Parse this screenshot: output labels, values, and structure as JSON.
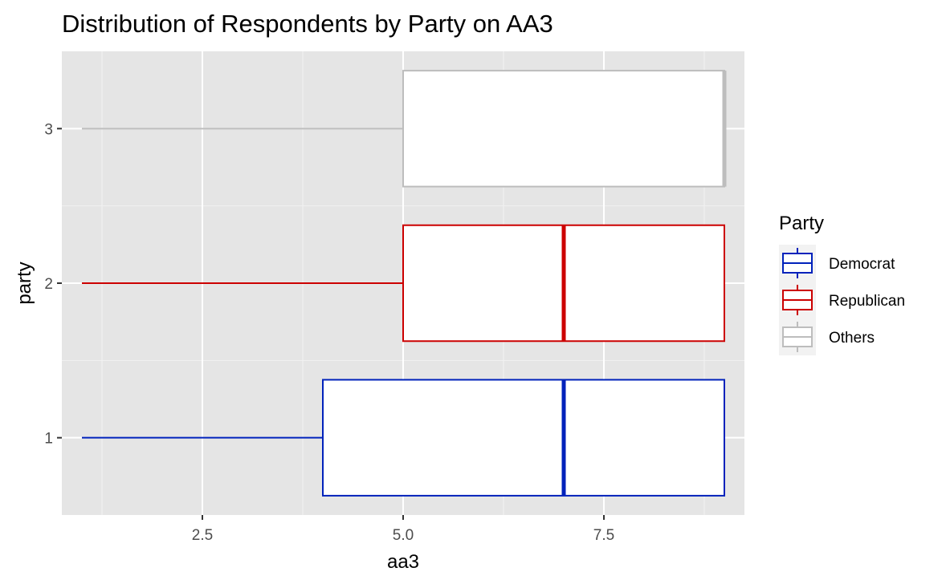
{
  "chart_data": {
    "type": "boxplot",
    "orientation": "horizontal",
    "title": "Distribution of Respondents by Party on AA3",
    "xlabel": "aa3",
    "ylabel": "party",
    "xlim": [
      0.75,
      9.25
    ],
    "ylim": [
      0.5,
      3.5
    ],
    "x_ticks": [
      2.5,
      5.0,
      7.5
    ],
    "x_tick_labels": [
      "2.5",
      "5.0",
      "7.5"
    ],
    "y_ticks": [
      1,
      2,
      3
    ],
    "y_tick_labels": [
      "1",
      "2",
      "3"
    ],
    "grid": true,
    "legend": {
      "title": "Party",
      "position": "right"
    },
    "series": [
      {
        "name": "Democrat",
        "y": 1,
        "color": "#0022bb",
        "min": 1,
        "q1": 4,
        "median": 7,
        "q3": 9,
        "max": 9
      },
      {
        "name": "Republican",
        "y": 2,
        "color": "#cc0000",
        "min": 1,
        "q1": 5,
        "median": 7,
        "q3": 9,
        "max": 9
      },
      {
        "name": "Others",
        "y": 3,
        "color": "#bdbdbd",
        "min": 1,
        "q1": 5,
        "median": 9,
        "q3": 9,
        "max": 9
      }
    ]
  }
}
